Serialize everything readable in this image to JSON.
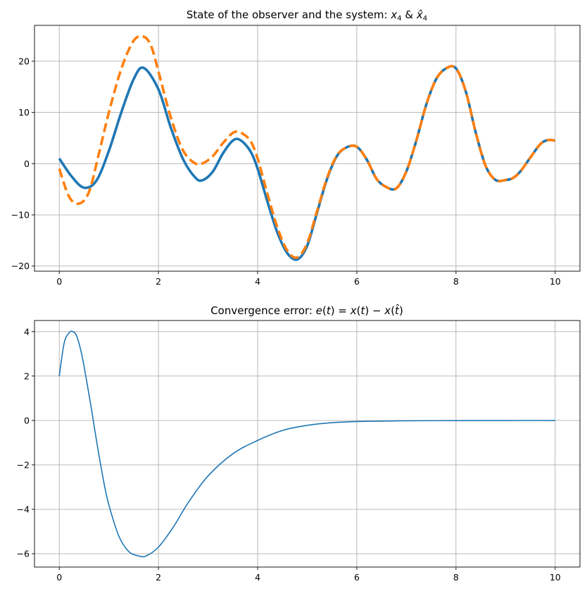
{
  "chart_data": [
    {
      "type": "line",
      "title": "State of the observer and the system: ",
      "title_math": "x4 & x̂4",
      "xlim": [
        -0.5,
        10.5
      ],
      "ylim": [
        -21,
        27
      ],
      "xticks": [
        0,
        2,
        4,
        6,
        8,
        10
      ],
      "yticks": [
        -20,
        -10,
        0,
        10,
        20
      ],
      "xtick_labels": [
        "0",
        "2",
        "4",
        "6",
        "8",
        "10"
      ],
      "ytick_labels": [
        "−20",
        "−10",
        "0",
        "10",
        "20"
      ],
      "grid": true,
      "series": [
        {
          "color": "#1f77b4",
          "style": "solid",
          "x": [
            0,
            0.25,
            0.5,
            0.75,
            1.0,
            1.25,
            1.5,
            1.7,
            2.0,
            2.25,
            2.5,
            2.75,
            2.9,
            3.1,
            3.3,
            3.5,
            3.65,
            3.85,
            4.0,
            4.2,
            4.4,
            4.6,
            4.8,
            5.0,
            5.2,
            5.4,
            5.6,
            5.8,
            6.0,
            6.2,
            6.4,
            6.6,
            6.8,
            7.0,
            7.2,
            7.4,
            7.6,
            7.8,
            8.0,
            8.2,
            8.4,
            8.6,
            8.8,
            9.0,
            9.15,
            9.3,
            9.5,
            9.7,
            9.85,
            10.0
          ],
          "y": [
            1.0,
            -2.5,
            -4.7,
            -3.3,
            2.5,
            10.0,
            16.5,
            18.7,
            14.5,
            7.0,
            0.8,
            -2.8,
            -3.2,
            -1.5,
            2.0,
            4.5,
            4.6,
            2.5,
            -1.0,
            -7.5,
            -13.5,
            -17.5,
            -18.7,
            -16.0,
            -9.5,
            -3.0,
            1.5,
            3.2,
            3.3,
            0.8,
            -3.0,
            -4.6,
            -4.8,
            -1.5,
            4.5,
            11.5,
            16.5,
            18.6,
            18.6,
            14.0,
            6.0,
            -0.5,
            -3.2,
            -3.2,
            -2.8,
            -1.5,
            1.2,
            3.8,
            4.6,
            4.5
          ]
        },
        {
          "color": "#ff7f0e",
          "style": "dashed",
          "x": [
            0,
            0.2,
            0.4,
            0.6,
            0.8,
            1.0,
            1.25,
            1.5,
            1.7,
            1.85,
            2.0,
            2.25,
            2.5,
            2.75,
            2.9,
            3.1,
            3.3,
            3.5,
            3.65,
            3.85,
            4.0,
            4.2,
            4.4,
            4.6,
            4.8,
            5.0,
            5.2,
            5.4,
            5.6,
            5.8,
            6.0,
            6.2,
            6.4,
            6.6,
            6.8,
            7.0,
            7.2,
            7.4,
            7.6,
            7.8,
            8.0,
            8.2,
            8.4,
            8.6,
            8.8,
            9.0,
            9.15,
            9.3,
            9.5,
            9.7,
            9.85,
            10.0
          ],
          "y": [
            -1.0,
            -6.5,
            -7.8,
            -5.5,
            2.0,
            10.0,
            18.5,
            24.0,
            24.8,
            23.0,
            18.0,
            9.0,
            2.5,
            0.0,
            0.1,
            1.5,
            4.0,
            6.0,
            6.1,
            4.5,
            1.0,
            -6.0,
            -12.5,
            -17.0,
            -18.3,
            -15.5,
            -9.2,
            -2.8,
            1.6,
            3.2,
            3.3,
            0.8,
            -3.0,
            -4.6,
            -4.8,
            -1.5,
            4.5,
            11.5,
            16.5,
            18.6,
            18.6,
            14.0,
            6.0,
            -0.5,
            -3.2,
            -3.2,
            -2.8,
            -1.5,
            1.2,
            3.8,
            4.6,
            4.5
          ]
        }
      ]
    },
    {
      "type": "line",
      "title": "Convergence error: ",
      "title_math": "e(t) = x(t) − x(t̂)",
      "xlim": [
        -0.5,
        10.5
      ],
      "ylim": [
        -6.6,
        4.5
      ],
      "xticks": [
        0,
        2,
        4,
        6,
        8,
        10
      ],
      "yticks": [
        -6,
        -4,
        -2,
        0,
        2,
        4
      ],
      "xtick_labels": [
        "0",
        "2",
        "4",
        "6",
        "8",
        "10"
      ],
      "ytick_labels": [
        "−6",
        "−4",
        "−2",
        "0",
        "2",
        "4"
      ],
      "grid": true,
      "series": [
        {
          "color": "#1f77b4",
          "style": "solid",
          "x": [
            0,
            0.1,
            0.2,
            0.27,
            0.35,
            0.45,
            0.55,
            0.65,
            0.75,
            0.9,
            1.0,
            1.2,
            1.4,
            1.6,
            1.75,
            2.0,
            2.3,
            2.6,
            3.0,
            3.5,
            4.0,
            4.5,
            5.0,
            5.5,
            6.0,
            6.5,
            7.0,
            8.0,
            9.0,
            10.0
          ],
          "y": [
            2.0,
            3.5,
            3.95,
            4.0,
            3.8,
            3.0,
            1.8,
            0.5,
            -0.9,
            -2.8,
            -3.8,
            -5.2,
            -5.9,
            -6.1,
            -6.1,
            -5.7,
            -4.8,
            -3.7,
            -2.5,
            -1.5,
            -0.9,
            -0.45,
            -0.22,
            -0.1,
            -0.05,
            -0.03,
            -0.015,
            -0.005,
            0.0,
            0.0
          ]
        }
      ]
    }
  ]
}
